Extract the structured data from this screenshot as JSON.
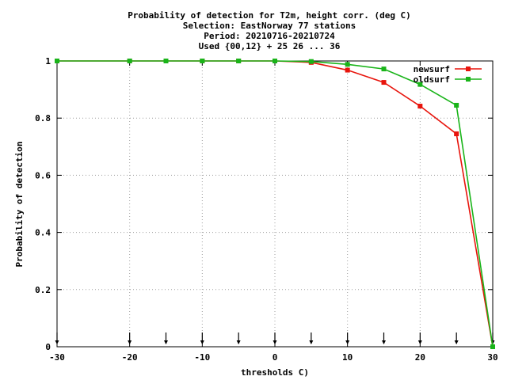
{
  "chart_data": {
    "type": "line",
    "title_lines": [
      "Probability of detection  for T2m, height corr. (deg C)",
      "Selection: EastNorway     77 stations",
      "Period: 20210716-20210724",
      "Used {00,12} + 25 26 ... 36"
    ],
    "xlabel": "thresholds C)",
    "ylabel": "Probability of detection",
    "xlim": [
      -30,
      30
    ],
    "ylim": [
      0,
      1
    ],
    "xticks": [
      "-30",
      "-20",
      "-10",
      "0",
      "10",
      "20",
      "30"
    ],
    "yticks": [
      "0",
      "0.2",
      "0.4",
      "0.6",
      "0.8",
      "1"
    ],
    "grid": true,
    "legend_position": "top-right",
    "series": [
      {
        "name": "newsurf",
        "color": "#e8140c",
        "x": [
          -30,
          -20,
          -15,
          -10,
          -5,
          0,
          5,
          10,
          15,
          20,
          25,
          30
        ],
        "y": [
          1.0,
          1.0,
          1.0,
          1.0,
          1.0,
          1.0,
          0.995,
          0.968,
          0.925,
          0.842,
          0.745,
          0.0
        ]
      },
      {
        "name": "oldsurf",
        "color": "#19b419",
        "x": [
          -30,
          -20,
          -15,
          -10,
          -5,
          0,
          5,
          10,
          15,
          20,
          25,
          30
        ],
        "y": [
          1.0,
          1.0,
          1.0,
          1.0,
          1.0,
          1.0,
          0.998,
          0.988,
          0.972,
          0.918,
          0.845,
          0.0
        ]
      }
    ],
    "threshold_markers_x": [
      -30,
      -20,
      -15,
      -10,
      -5,
      0,
      5,
      10,
      15,
      20,
      25,
      30
    ]
  }
}
